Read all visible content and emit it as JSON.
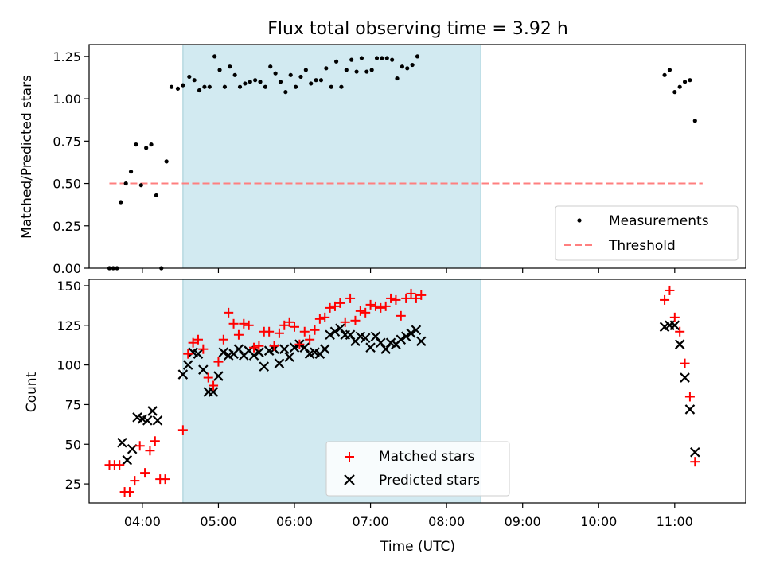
{
  "chart_data": [
    {
      "type": "scatter",
      "title": "Flux total observing time = 3.92 h",
      "xlabel": "",
      "ylabel": "Matched/Predicted stars",
      "xlim": [
        "03:18",
        "11:56"
      ],
      "ylim": [
        0,
        1.32
      ],
      "yticks": [
        "0.00",
        "0.25",
        "0.50",
        "0.75",
        "1.00",
        "1.25"
      ],
      "shaded_span": [
        "04:32",
        "08:27"
      ],
      "legend_position": "lower-right",
      "threshold": {
        "name": "Threshold",
        "value": 0.5,
        "x_start": "03:34",
        "x_end": "11:22",
        "color": "#ff7f7f"
      },
      "series": [
        {
          "name": "Measurements",
          "color": "#000000",
          "points": [
            [
              "03:34",
              0.0
            ],
            [
              "03:37",
              0.0
            ],
            [
              "03:40",
              0.0
            ],
            [
              "03:43",
              0.39
            ],
            [
              "03:47",
              0.5
            ],
            [
              "03:51",
              0.57
            ],
            [
              "03:55",
              0.73
            ],
            [
              "03:59",
              0.49
            ],
            [
              "04:03",
              0.71
            ],
            [
              "04:07",
              0.73
            ],
            [
              "04:11",
              0.43
            ],
            [
              "04:15",
              0.0
            ],
            [
              "04:19",
              0.63
            ],
            [
              "04:23",
              1.07
            ],
            [
              "04:28",
              1.06
            ],
            [
              "04:32",
              1.08
            ],
            [
              "04:37",
              1.13
            ],
            [
              "04:41",
              1.11
            ],
            [
              "04:45",
              1.05
            ],
            [
              "04:49",
              1.07
            ],
            [
              "04:53",
              1.07
            ],
            [
              "04:57",
              1.25
            ],
            [
              "05:01",
              1.17
            ],
            [
              "05:05",
              1.07
            ],
            [
              "05:09",
              1.19
            ],
            [
              "05:13",
              1.14
            ],
            [
              "05:17",
              1.07
            ],
            [
              "05:21",
              1.09
            ],
            [
              "05:25",
              1.1
            ],
            [
              "05:29",
              1.11
            ],
            [
              "05:33",
              1.1
            ],
            [
              "05:37",
              1.07
            ],
            [
              "05:41",
              1.19
            ],
            [
              "05:45",
              1.15
            ],
            [
              "05:49",
              1.1
            ],
            [
              "05:53",
              1.04
            ],
            [
              "05:57",
              1.14
            ],
            [
              "06:01",
              1.07
            ],
            [
              "06:05",
              1.13
            ],
            [
              "06:09",
              1.17
            ],
            [
              "06:13",
              1.09
            ],
            [
              "06:17",
              1.11
            ],
            [
              "06:21",
              1.11
            ],
            [
              "06:25",
              1.18
            ],
            [
              "06:29",
              1.07
            ],
            [
              "06:33",
              1.22
            ],
            [
              "06:37",
              1.07
            ],
            [
              "06:41",
              1.17
            ],
            [
              "06:45",
              1.23
            ],
            [
              "06:49",
              1.16
            ],
            [
              "06:53",
              1.24
            ],
            [
              "06:57",
              1.16
            ],
            [
              "07:01",
              1.17
            ],
            [
              "07:05",
              1.24
            ],
            [
              "07:09",
              1.24
            ],
            [
              "07:13",
              1.24
            ],
            [
              "07:17",
              1.23
            ],
            [
              "07:21",
              1.12
            ],
            [
              "07:25",
              1.19
            ],
            [
              "07:29",
              1.18
            ],
            [
              "07:33",
              1.2
            ],
            [
              "07:37",
              1.25
            ],
            [
              "10:52",
              1.14
            ],
            [
              "10:56",
              1.17
            ],
            [
              "11:00",
              1.04
            ],
            [
              "11:04",
              1.07
            ],
            [
              "11:08",
              1.1
            ],
            [
              "11:12",
              1.11
            ],
            [
              "11:16",
              0.87
            ]
          ]
        }
      ]
    },
    {
      "type": "scatter",
      "title": "",
      "xlabel": "Time (UTC)",
      "ylabel": "Count",
      "xlim": [
        "03:18",
        "11:56"
      ],
      "ylim": [
        13,
        154
      ],
      "yticks": [
        "25",
        "50",
        "75",
        "100",
        "125",
        "150"
      ],
      "xticks": [
        "04:00",
        "05:00",
        "06:00",
        "07:00",
        "08:00",
        "09:00",
        "10:00",
        "11:00"
      ],
      "shaded_span": [
        "04:32",
        "08:27"
      ],
      "legend_position": "lower-center",
      "series": [
        {
          "name": "Matched stars",
          "marker": "plus",
          "color": "#ff0000",
          "points": [
            [
              "03:34",
              37
            ],
            [
              "03:38",
              37
            ],
            [
              "03:42",
              37
            ],
            [
              "03:46",
              20
            ],
            [
              "03:50",
              20
            ],
            [
              "03:54",
              27
            ],
            [
              "03:58",
              49
            ],
            [
              "04:02",
              32
            ],
            [
              "04:06",
              46
            ],
            [
              "04:10",
              52
            ],
            [
              "04:14",
              28
            ],
            [
              "04:18",
              28
            ],
            [
              "04:32",
              59
            ],
            [
              "04:36",
              107
            ],
            [
              "04:40",
              114
            ],
            [
              "04:44",
              116
            ],
            [
              "04:48",
              110
            ],
            [
              "04:52",
              92
            ],
            [
              "04:56",
              87
            ],
            [
              "05:00",
              102
            ],
            [
              "05:04",
              116
            ],
            [
              "05:08",
              133
            ],
            [
              "05:12",
              126
            ],
            [
              "05:16",
              119
            ],
            [
              "05:20",
              126
            ],
            [
              "05:24",
              125
            ],
            [
              "05:28",
              111
            ],
            [
              "05:32",
              112
            ],
            [
              "05:36",
              121
            ],
            [
              "05:40",
              121
            ],
            [
              "05:44",
              112
            ],
            [
              "05:48",
              120
            ],
            [
              "05:52",
              125
            ],
            [
              "05:56",
              127
            ],
            [
              "06:00",
              124
            ],
            [
              "06:04",
              113
            ],
            [
              "06:08",
              121
            ],
            [
              "06:12",
              116
            ],
            [
              "06:16",
              122
            ],
            [
              "06:20",
              129
            ],
            [
              "06:24",
              130
            ],
            [
              "06:28",
              136
            ],
            [
              "06:32",
              137
            ],
            [
              "06:36",
              139
            ],
            [
              "06:40",
              127
            ],
            [
              "06:44",
              142
            ],
            [
              "06:48",
              128
            ],
            [
              "06:52",
              134
            ],
            [
              "06:56",
              133
            ],
            [
              "07:00",
              138
            ],
            [
              "07:04",
              137
            ],
            [
              "07:08",
              136
            ],
            [
              "07:12",
              137
            ],
            [
              "07:16",
              142
            ],
            [
              "07:20",
              141
            ],
            [
              "07:24",
              131
            ],
            [
              "07:28",
              142
            ],
            [
              "07:32",
              145
            ],
            [
              "07:36",
              142
            ],
            [
              "07:40",
              144
            ],
            [
              "10:52",
              141
            ],
            [
              "10:56",
              147
            ],
            [
              "11:00",
              130
            ],
            [
              "11:04",
              121
            ],
            [
              "11:08",
              101
            ],
            [
              "11:12",
              80
            ],
            [
              "11:16",
              39
            ]
          ]
        },
        {
          "name": "Predicted stars",
          "marker": "x",
          "color": "#000000",
          "points": [
            [
              "03:44",
              51
            ],
            [
              "03:48",
              40
            ],
            [
              "03:52",
              47
            ],
            [
              "03:56",
              67
            ],
            [
              "04:00",
              66
            ],
            [
              "04:04",
              65
            ],
            [
              "04:08",
              71
            ],
            [
              "04:12",
              65
            ],
            [
              "04:32",
              94
            ],
            [
              "04:36",
              100
            ],
            [
              "04:40",
              108
            ],
            [
              "04:44",
              107
            ],
            [
              "04:48",
              97
            ],
            [
              "04:52",
              83
            ],
            [
              "04:56",
              83
            ],
            [
              "05:00",
              93
            ],
            [
              "05:04",
              108
            ],
            [
              "05:08",
              106
            ],
            [
              "05:12",
              107
            ],
            [
              "05:16",
              110
            ],
            [
              "05:20",
              106
            ],
            [
              "05:24",
              109
            ],
            [
              "05:28",
              106
            ],
            [
              "05:32",
              108
            ],
            [
              "05:36",
              99
            ],
            [
              "05:40",
              109
            ],
            [
              "05:44",
              110
            ],
            [
              "05:48",
              101
            ],
            [
              "05:52",
              110
            ],
            [
              "05:56",
              105
            ],
            [
              "06:00",
              111
            ],
            [
              "06:04",
              113
            ],
            [
              "06:08",
              111
            ],
            [
              "06:12",
              107
            ],
            [
              "06:16",
              108
            ],
            [
              "06:20",
              107
            ],
            [
              "06:24",
              110
            ],
            [
              "06:28",
              119
            ],
            [
              "06:32",
              121
            ],
            [
              "06:36",
              123
            ],
            [
              "06:40",
              119
            ],
            [
              "06:44",
              119
            ],
            [
              "06:48",
              115
            ],
            [
              "06:52",
              118
            ],
            [
              "06:56",
              117
            ],
            [
              "07:00",
              111
            ],
            [
              "07:04",
              118
            ],
            [
              "07:08",
              114
            ],
            [
              "07:12",
              110
            ],
            [
              "07:16",
              114
            ],
            [
              "07:20",
              113
            ],
            [
              "07:24",
              116
            ],
            [
              "07:28",
              118
            ],
            [
              "07:32",
              120
            ],
            [
              "07:36",
              122
            ],
            [
              "07:40",
              115
            ],
            [
              "10:52",
              124
            ],
            [
              "10:56",
              125
            ],
            [
              "11:00",
              125
            ],
            [
              "11:04",
              113
            ],
            [
              "11:08",
              92
            ],
            [
              "11:12",
              72
            ],
            [
              "11:16",
              45
            ]
          ]
        }
      ]
    }
  ]
}
